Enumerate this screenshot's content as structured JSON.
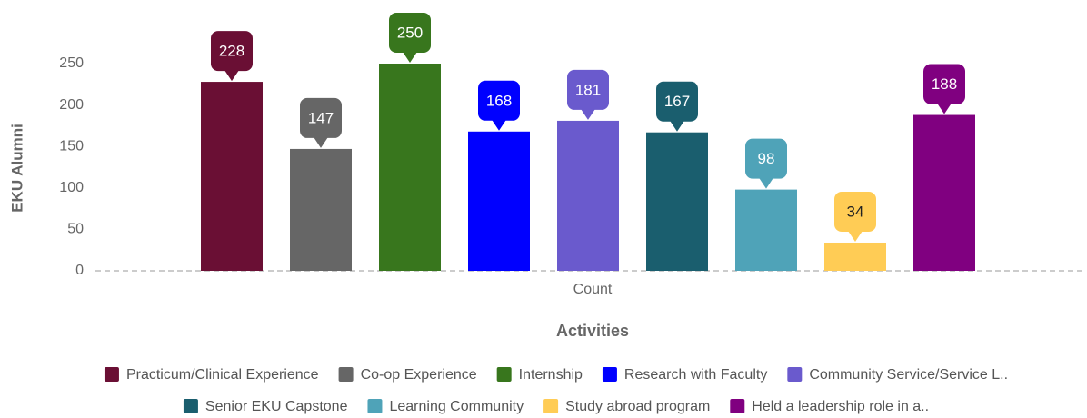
{
  "chart_data": {
    "type": "bar",
    "x_label": "Activities",
    "y_label": "EKU Alumni",
    "categories": [
      "Count"
    ],
    "series": [
      {
        "name": "Practicum/Clinical Experience",
        "color": "#6a0f34",
        "values": [
          228
        ]
      },
      {
        "name": "Co-op Experience",
        "color": "#666666",
        "values": [
          147
        ]
      },
      {
        "name": "Internship",
        "color": "#38761d",
        "values": [
          250
        ]
      },
      {
        "name": "Research with Faculty",
        "color": "#0000ff",
        "values": [
          168
        ]
      },
      {
        "name": "Community Service/Service L..",
        "color": "#6a5acd",
        "values": [
          181
        ]
      },
      {
        "name": "Senior EKU Capstone",
        "color": "#1a5e6e",
        "values": [
          167
        ]
      },
      {
        "name": "Learning Community",
        "color": "#4fa3b8",
        "values": [
          98
        ]
      },
      {
        "name": "Study abroad program",
        "color": "#ffcc55",
        "values": [
          34
        ]
      },
      {
        "name": "Held a leadership role in a..",
        "color": "#800080",
        "values": [
          188
        ]
      }
    ],
    "ylim": [
      0,
      250
    ],
    "yticks": [
      0,
      50,
      100,
      150,
      200,
      250
    ],
    "grid": false,
    "legend": "bottom"
  }
}
